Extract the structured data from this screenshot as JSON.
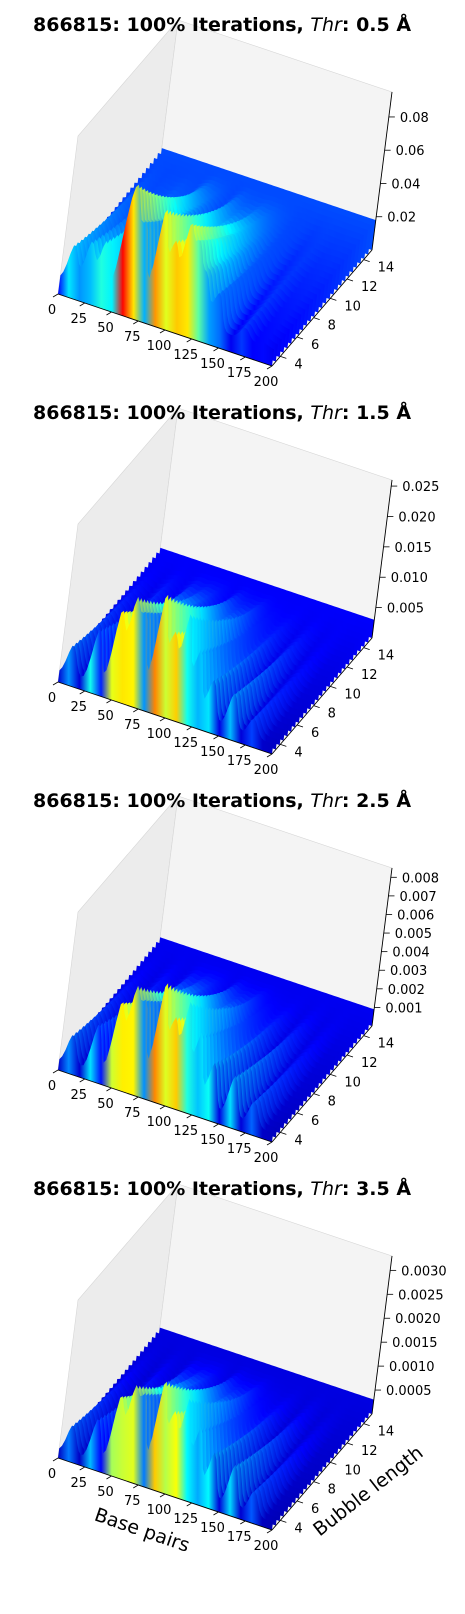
{
  "chart_data": [
    {
      "type": "surface3d",
      "title_prefix": "866815: 100% Iterations, ",
      "title_var": "Thr",
      "title_suffix": ": 0.5 Å",
      "x_ticks": [
        "0",
        "25",
        "50",
        "75",
        "100",
        "125",
        "150",
        "175",
        "200"
      ],
      "y_ticks": [
        "4",
        "6",
        "8",
        "10",
        "12",
        "14"
      ],
      "z_ticks": [
        "0.02",
        "0.04",
        "0.06",
        "0.08"
      ],
      "xlabel": "",
      "ylabel": "",
      "xlim": [
        0,
        200
      ],
      "ylim": [
        3,
        15
      ],
      "zlim": [
        0,
        0.095
      ],
      "colormap": "jet",
      "base_level": 0.018,
      "peaks": [
        {
          "x": 10,
          "z": 0.04
        },
        {
          "x": 25,
          "z": 0.045
        },
        {
          "x": 38,
          "z": 0.048
        },
        {
          "x": 55,
          "z": 0.062
        },
        {
          "x": 62,
          "z": 0.07
        },
        {
          "x": 72,
          "z": 0.063
        },
        {
          "x": 88,
          "z": 0.078
        },
        {
          "x": 100,
          "z": 0.06
        },
        {
          "x": 112,
          "z": 0.072
        },
        {
          "x": 122,
          "z": 0.062
        },
        {
          "x": 132,
          "z": 0.046
        },
        {
          "x": 145,
          "z": 0.04
        },
        {
          "x": 172,
          "z": 0.025
        },
        {
          "x": 190,
          "z": 0.02
        }
      ]
    },
    {
      "type": "surface3d",
      "title_prefix": "866815: 100% Iterations, ",
      "title_var": "Thr",
      "title_suffix": ": 1.5 Å",
      "x_ticks": [
        "0",
        "25",
        "50",
        "75",
        "100",
        "125",
        "150",
        "175",
        "200"
      ],
      "y_ticks": [
        "4",
        "6",
        "8",
        "10",
        "12",
        "14"
      ],
      "z_ticks": [
        "0.005",
        "0.010",
        "0.015",
        "0.020",
        "0.025"
      ],
      "xlabel": "",
      "ylabel": "",
      "xlim": [
        0,
        200
      ],
      "ylim": [
        3,
        15
      ],
      "zlim": [
        0,
        0.026
      ],
      "colormap": "jet",
      "base_level": 0.003,
      "peaks": [
        {
          "x": 10,
          "z": 0.008
        },
        {
          "x": 32,
          "z": 0.012
        },
        {
          "x": 50,
          "z": 0.016
        },
        {
          "x": 62,
          "z": 0.018
        },
        {
          "x": 72,
          "z": 0.016
        },
        {
          "x": 88,
          "z": 0.021
        },
        {
          "x": 100,
          "z": 0.015
        },
        {
          "x": 112,
          "z": 0.019
        },
        {
          "x": 125,
          "z": 0.014
        },
        {
          "x": 140,
          "z": 0.01
        },
        {
          "x": 160,
          "z": 0.009
        },
        {
          "x": 180,
          "z": 0.006
        }
      ]
    },
    {
      "type": "surface3d",
      "title_prefix": "866815: 100% Iterations, ",
      "title_var": "Thr",
      "title_suffix": ": 2.5 Å",
      "x_ticks": [
        "0",
        "25",
        "50",
        "75",
        "100",
        "125",
        "150",
        "175",
        "200"
      ],
      "y_ticks": [
        "4",
        "6",
        "8",
        "10",
        "12",
        "14"
      ],
      "z_ticks": [
        "0.001",
        "0.002",
        "0.003",
        "0.004",
        "0.005",
        "0.006",
        "0.007",
        "0.008"
      ],
      "xlabel": "",
      "ylabel": "",
      "xlim": [
        0,
        200
      ],
      "ylim": [
        3,
        15
      ],
      "zlim": [
        0,
        0.0085
      ],
      "colormap": "jet",
      "base_level": 0.0009,
      "peaks": [
        {
          "x": 10,
          "z": 0.0025
        },
        {
          "x": 32,
          "z": 0.0035
        },
        {
          "x": 50,
          "z": 0.005
        },
        {
          "x": 62,
          "z": 0.0058
        },
        {
          "x": 72,
          "z": 0.0052
        },
        {
          "x": 88,
          "z": 0.0068
        },
        {
          "x": 100,
          "z": 0.005
        },
        {
          "x": 112,
          "z": 0.0062
        },
        {
          "x": 125,
          "z": 0.0048
        },
        {
          "x": 140,
          "z": 0.0035
        },
        {
          "x": 160,
          "z": 0.0032
        },
        {
          "x": 180,
          "z": 0.0022
        }
      ]
    },
    {
      "type": "surface3d",
      "title_prefix": "866815: 100% Iterations, ",
      "title_var": "Thr",
      "title_suffix": ": 3.5 Å",
      "x_ticks": [
        "0",
        "25",
        "50",
        "75",
        "100",
        "125",
        "150",
        "175",
        "200"
      ],
      "y_ticks": [
        "4",
        "6",
        "8",
        "10",
        "12",
        "14"
      ],
      "z_ticks": [
        "0.0005",
        "0.0010",
        "0.0015",
        "0.0020",
        "0.0025",
        "0.0030"
      ],
      "xlabel": "Base pairs",
      "ylabel": "Bubble length",
      "xlim": [
        0,
        200
      ],
      "ylim": [
        3,
        15
      ],
      "zlim": [
        0,
        0.0033
      ],
      "colormap": "jet",
      "base_level": 0.0003,
      "peaks": [
        {
          "x": 10,
          "z": 0.0009
        },
        {
          "x": 32,
          "z": 0.0012
        },
        {
          "x": 50,
          "z": 0.0018
        },
        {
          "x": 62,
          "z": 0.002
        },
        {
          "x": 72,
          "z": 0.0019
        },
        {
          "x": 88,
          "z": 0.0024
        },
        {
          "x": 100,
          "z": 0.0018
        },
        {
          "x": 112,
          "z": 0.0022
        },
        {
          "x": 125,
          "z": 0.0017
        },
        {
          "x": 140,
          "z": 0.0013
        },
        {
          "x": 160,
          "z": 0.0012
        },
        {
          "x": 180,
          "z": 0.0008
        }
      ]
    }
  ]
}
